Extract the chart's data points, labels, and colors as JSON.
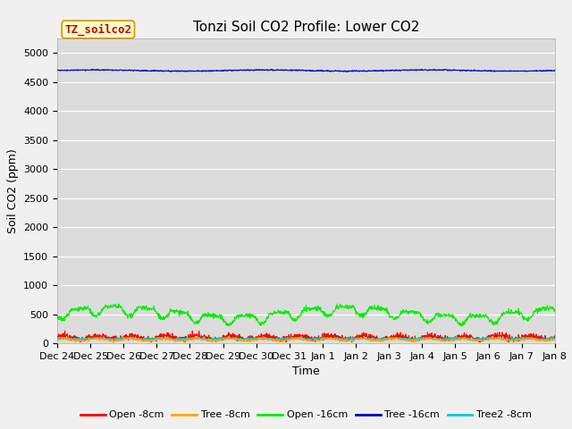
{
  "title": "Tonzi Soil CO2 Profile: Lower CO2",
  "ylabel": "Soil CO2 (ppm)",
  "xlabel": "Time",
  "dataset_label": "TZ_soilco2",
  "ylim": [
    0,
    5250
  ],
  "yticks": [
    0,
    500,
    1000,
    1500,
    2000,
    2500,
    3000,
    3500,
    4000,
    4500,
    5000
  ],
  "bg_color": "#dcdcdc",
  "fig_color": "#f0f0f0",
  "series": {
    "open_8cm": {
      "label": "Open -8cm",
      "color": "#ff0000"
    },
    "tree_8cm": {
      "label": "Tree -8cm",
      "color": "#ffa500"
    },
    "open_16cm": {
      "label": "Open -16cm",
      "color": "#00ee00"
    },
    "tree_16cm": {
      "label": "Tree -16cm",
      "color": "#0000cc"
    },
    "tree2_8cm": {
      "label": "Tree2 -8cm",
      "color": "#00cccc"
    }
  },
  "n_points": 1440,
  "x_tick_labels": [
    "Dec 24",
    "Dec 25",
    "Dec 26",
    "Dec 27",
    "Dec 28",
    "Dec 29",
    "Dec 30",
    "Dec 31",
    "Jan 1",
    "Jan 2",
    "Jan 3",
    "Jan 4",
    "Jan 5",
    "Jan 6",
    "Jan 7",
    "Jan 8"
  ],
  "title_fontsize": 11,
  "axis_label_fontsize": 9,
  "tick_fontsize": 8,
  "legend_fontsize": 8,
  "linewidth": 0.8,
  "annotation_fontsize": 9
}
